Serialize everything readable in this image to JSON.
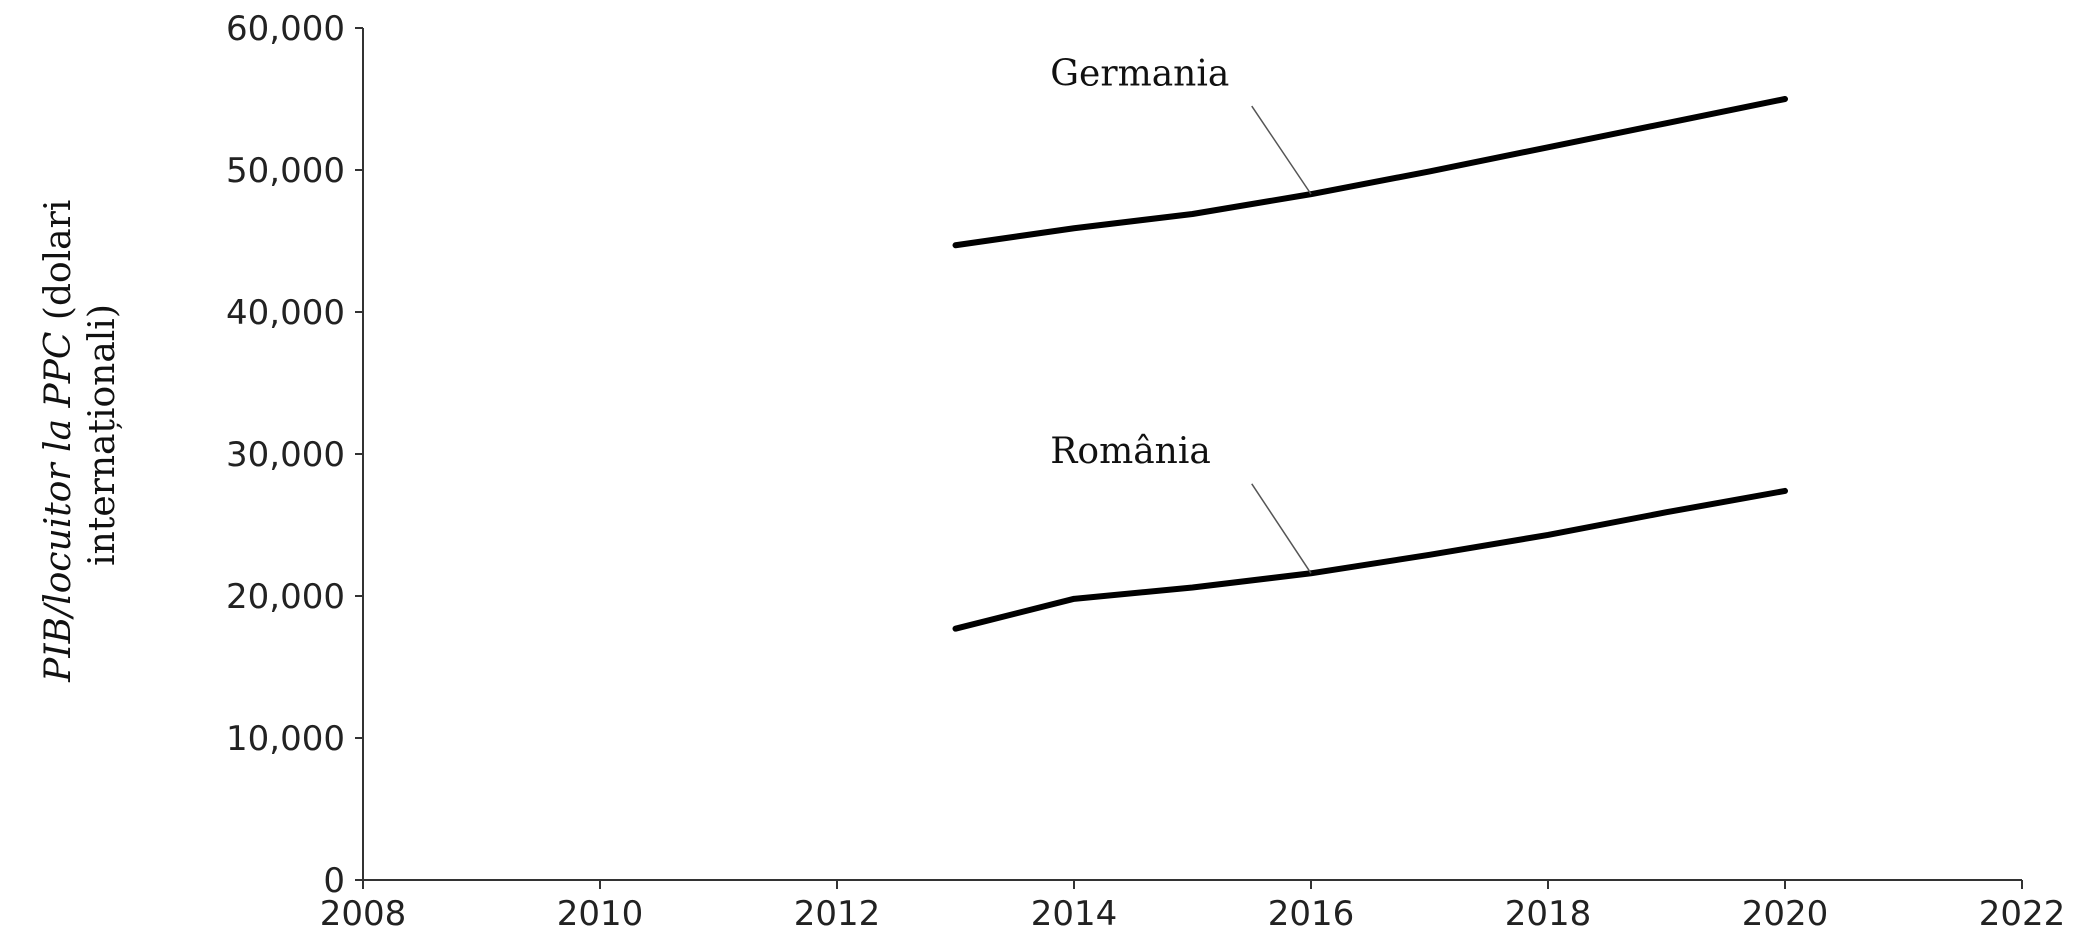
{
  "chart_data": {
    "type": "line",
    "title": "",
    "xlabel": "",
    "ylabel_parts": [
      {
        "text": "PIB/locuitor la PPC",
        "italic": true
      },
      {
        "text": " (dolari",
        "italic": false
      }
    ],
    "ylabel_line2": "internaționali)",
    "xlim": [
      2008,
      2022
    ],
    "ylim": [
      0,
      60000
    ],
    "x_ticks": [
      2008,
      2010,
      2012,
      2014,
      2016,
      2018,
      2020,
      2022
    ],
    "x_tick_labels": [
      "2008",
      "2010",
      "2012",
      "2014",
      "2016",
      "2018",
      "2020",
      "2022"
    ],
    "y_ticks": [
      0,
      10000,
      20000,
      30000,
      40000,
      50000,
      60000
    ],
    "y_tick_labels": [
      "0",
      "10,000",
      "20,000",
      "30,000",
      "40,000",
      "50,000",
      "60,000"
    ],
    "grid": false,
    "legend": "none",
    "series": [
      {
        "name": "Germania",
        "x": [
          2013,
          2014,
          2015,
          2016,
          2017,
          2018,
          2019,
          2020
        ],
        "y": [
          44700,
          45900,
          46900,
          48300,
          49900,
          51600,
          53300,
          55000
        ]
      },
      {
        "name": "România",
        "x": [
          2013,
          2014,
          2015,
          2016,
          2017,
          2018,
          2019,
          2020
        ],
        "y": [
          17700,
          19800,
          20600,
          21600,
          22900,
          24300,
          25900,
          27400
        ]
      }
    ],
    "annotations": [
      {
        "series": "Germania",
        "text": "Germania",
        "label_x": 2013.8,
        "label_y": 56800,
        "point_x": 2016,
        "point_y": 48300,
        "leader_from_x": 2015.5,
        "leader_from_y": 54500
      },
      {
        "series": "România",
        "text": "România",
        "label_x": 2013.8,
        "label_y": 30200,
        "point_x": 2016,
        "point_y": 21600,
        "leader_from_x": 2015.5,
        "leader_from_y": 27900
      }
    ]
  }
}
